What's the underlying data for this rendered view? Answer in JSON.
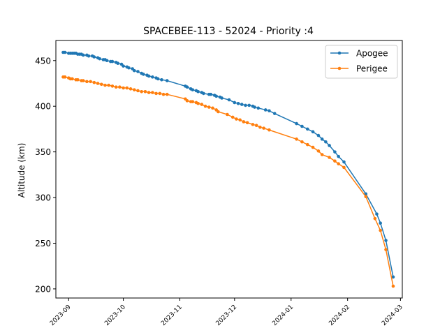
{
  "chart_data": {
    "type": "line",
    "title": "SPACEBEE-113 - 52024 - Priority :4",
    "xlabel": "",
    "ylabel": "Altitude (km)",
    "xlim": [
      "2023-08-25",
      "2024-03-02"
    ],
    "ylim": [
      190,
      472
    ],
    "x_ticks": [
      "2023-09",
      "2023-10",
      "2023-11",
      "2023-12",
      "2024-01",
      "2024-02",
      "2024-03"
    ],
    "y_ticks": [
      200,
      250,
      300,
      350,
      400,
      450
    ],
    "grid": false,
    "legend_position": "top-right",
    "series": [
      {
        "name": "Apogee",
        "color": "#1f77b4",
        "marker": "circle",
        "points": [
          [
            "2023-08-29",
            459
          ],
          [
            "2023-08-30",
            459
          ],
          [
            "2023-09-01",
            458
          ],
          [
            "2023-09-02",
            458
          ],
          [
            "2023-09-03",
            458
          ],
          [
            "2023-09-04",
            458
          ],
          [
            "2023-09-05",
            458
          ],
          [
            "2023-09-06",
            457
          ],
          [
            "2023-09-07",
            457
          ],
          [
            "2023-09-08",
            457
          ],
          [
            "2023-09-09",
            456
          ],
          [
            "2023-09-11",
            456
          ],
          [
            "2023-09-12",
            455
          ],
          [
            "2023-09-14",
            455
          ],
          [
            "2023-09-15",
            454
          ],
          [
            "2023-09-17",
            453
          ],
          [
            "2023-09-18",
            452
          ],
          [
            "2023-09-20",
            451
          ],
          [
            "2023-09-21",
            451
          ],
          [
            "2023-09-22",
            450
          ],
          [
            "2023-09-24",
            449
          ],
          [
            "2023-09-25",
            449
          ],
          [
            "2023-09-27",
            448
          ],
          [
            "2023-09-28",
            447
          ],
          [
            "2023-09-30",
            446
          ],
          [
            "2023-10-01",
            444
          ],
          [
            "2023-10-03",
            443
          ],
          [
            "2023-10-04",
            442
          ],
          [
            "2023-10-06",
            441
          ],
          [
            "2023-10-07",
            439
          ],
          [
            "2023-10-09",
            438
          ],
          [
            "2023-10-11",
            436
          ],
          [
            "2023-10-12",
            435
          ],
          [
            "2023-10-14",
            434
          ],
          [
            "2023-10-15",
            433
          ],
          [
            "2023-10-17",
            432
          ],
          [
            "2023-10-19",
            431
          ],
          [
            "2023-10-20",
            430
          ],
          [
            "2023-10-22",
            429
          ],
          [
            "2023-10-25",
            428
          ],
          [
            "2023-11-04",
            422
          ],
          [
            "2023-11-05",
            421
          ],
          [
            "2023-11-07",
            419
          ],
          [
            "2023-11-08",
            418
          ],
          [
            "2023-11-10",
            417
          ],
          [
            "2023-11-11",
            416
          ],
          [
            "2023-11-13",
            415
          ],
          [
            "2023-11-14",
            414
          ],
          [
            "2023-11-17",
            413
          ],
          [
            "2023-11-18",
            413
          ],
          [
            "2023-11-20",
            412
          ],
          [
            "2023-11-21",
            411
          ],
          [
            "2023-11-23",
            410
          ],
          [
            "2023-11-24",
            409
          ],
          [
            "2023-11-28",
            407
          ],
          [
            "2023-12-01",
            404
          ],
          [
            "2023-12-03",
            403
          ],
          [
            "2023-12-05",
            402
          ],
          [
            "2023-12-07",
            401
          ],
          [
            "2023-12-09",
            401
          ],
          [
            "2023-12-11",
            400
          ],
          [
            "2023-12-12",
            399
          ],
          [
            "2023-12-14",
            398
          ],
          [
            "2023-12-18",
            396
          ],
          [
            "2023-12-20",
            395
          ],
          [
            "2023-12-23",
            392
          ],
          [
            "2024-01-04",
            381
          ],
          [
            "2024-01-07",
            378
          ],
          [
            "2024-01-10",
            375
          ],
          [
            "2024-01-13",
            372
          ],
          [
            "2024-01-16",
            368
          ],
          [
            "2024-01-18",
            364
          ],
          [
            "2024-01-20",
            361
          ],
          [
            "2024-01-22",
            357
          ],
          [
            "2024-01-25",
            350
          ],
          [
            "2024-01-27",
            345
          ],
          [
            "2024-01-30",
            339
          ],
          [
            "2024-02-11",
            304
          ],
          [
            "2024-02-17",
            282
          ],
          [
            "2024-02-19",
            272
          ],
          [
            "2024-02-22",
            253
          ],
          [
            "2024-02-26",
            213
          ]
        ]
      },
      {
        "name": "Perigee",
        "color": "#ff7f0e",
        "marker": "circle",
        "points": [
          [
            "2023-08-29",
            432
          ],
          [
            "2023-08-30",
            432
          ],
          [
            "2023-09-01",
            431
          ],
          [
            "2023-09-02",
            430
          ],
          [
            "2023-09-03",
            430
          ],
          [
            "2023-09-05",
            429
          ],
          [
            "2023-09-06",
            429
          ],
          [
            "2023-09-08",
            428
          ],
          [
            "2023-09-09",
            428
          ],
          [
            "2023-09-11",
            427
          ],
          [
            "2023-09-13",
            427
          ],
          [
            "2023-09-15",
            426
          ],
          [
            "2023-09-17",
            425
          ],
          [
            "2023-09-19",
            424
          ],
          [
            "2023-09-21",
            423
          ],
          [
            "2023-09-23",
            423
          ],
          [
            "2023-09-25",
            422
          ],
          [
            "2023-09-27",
            421
          ],
          [
            "2023-09-29",
            421
          ],
          [
            "2023-10-01",
            420
          ],
          [
            "2023-10-03",
            420
          ],
          [
            "2023-10-05",
            419
          ],
          [
            "2023-10-07",
            418
          ],
          [
            "2023-10-09",
            417
          ],
          [
            "2023-10-11",
            416
          ],
          [
            "2023-10-13",
            416
          ],
          [
            "2023-10-15",
            415
          ],
          [
            "2023-10-17",
            415
          ],
          [
            "2023-10-19",
            414
          ],
          [
            "2023-10-21",
            414
          ],
          [
            "2023-10-23",
            413
          ],
          [
            "2023-10-25",
            413
          ],
          [
            "2023-11-04",
            408
          ],
          [
            "2023-11-05",
            406
          ],
          [
            "2023-11-07",
            405
          ],
          [
            "2023-11-08",
            405
          ],
          [
            "2023-11-10",
            404
          ],
          [
            "2023-11-11",
            403
          ],
          [
            "2023-11-13",
            402
          ],
          [
            "2023-11-15",
            400
          ],
          [
            "2023-11-17",
            399
          ],
          [
            "2023-11-19",
            398
          ],
          [
            "2023-11-21",
            396
          ],
          [
            "2023-11-22",
            394
          ],
          [
            "2023-11-27",
            391
          ],
          [
            "2023-11-30",
            388
          ],
          [
            "2023-12-02",
            386
          ],
          [
            "2023-12-04",
            385
          ],
          [
            "2023-12-06",
            383
          ],
          [
            "2023-12-08",
            382
          ],
          [
            "2023-12-11",
            380
          ],
          [
            "2023-12-13",
            379
          ],
          [
            "2023-12-15",
            377
          ],
          [
            "2023-12-17",
            376
          ],
          [
            "2023-12-20",
            374
          ],
          [
            "2024-01-04",
            364
          ],
          [
            "2024-01-07",
            361
          ],
          [
            "2024-01-10",
            358
          ],
          [
            "2024-01-13",
            355
          ],
          [
            "2024-01-16",
            351
          ],
          [
            "2024-01-18",
            347
          ],
          [
            "2024-01-22",
            344
          ],
          [
            "2024-01-25",
            340
          ],
          [
            "2024-01-27",
            337
          ],
          [
            "2024-01-30",
            333
          ],
          [
            "2024-02-11",
            301
          ],
          [
            "2024-02-16",
            277
          ],
          [
            "2024-02-19",
            264
          ],
          [
            "2024-02-22",
            243
          ],
          [
            "2024-02-26",
            203
          ]
        ]
      }
    ]
  }
}
